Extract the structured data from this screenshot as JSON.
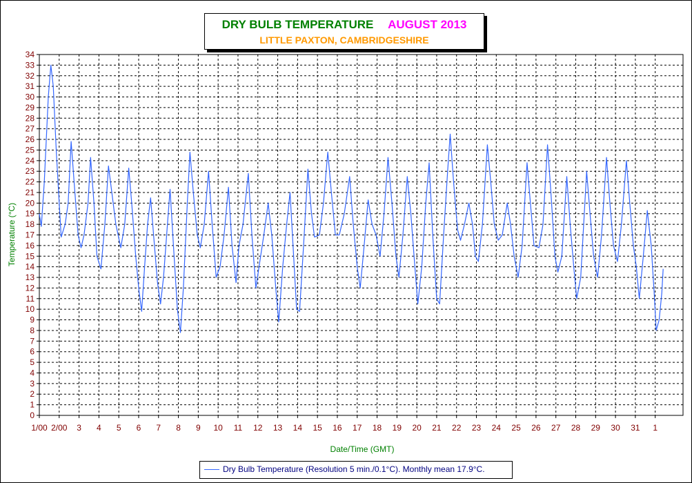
{
  "chart_data": {
    "type": "line",
    "title": "DRY BULB TEMPERATURE",
    "title_period": "AUGUST 2013",
    "subtitle": "LITTLE PAXTON, CAMBRIDGESHIRE",
    "xlabel": "Date/Time (GMT)",
    "ylabel": "Temperature (°C)",
    "ylim": [
      0,
      34
    ],
    "xlim": [
      1,
      33.4
    ],
    "x_unit": "day of August 2013 (GMT)",
    "grid": true,
    "legend_placement": "bottom-center",
    "y_ticks": [
      "0",
      "1",
      "2",
      "3",
      "4",
      "5",
      "6",
      "7",
      "8",
      "9",
      "10",
      "11",
      "12",
      "13",
      "14",
      "15",
      "16",
      "17",
      "18",
      "19",
      "20",
      "21",
      "22",
      "23",
      "24",
      "25",
      "26",
      "27",
      "28",
      "29",
      "30",
      "31",
      "32",
      "33",
      "34"
    ],
    "x_ticks": [
      {
        "day": 1,
        "label": "1/00"
      },
      {
        "day": 2,
        "label": "2/00"
      },
      {
        "day": 3,
        "label": "3"
      },
      {
        "day": 4,
        "label": "4"
      },
      {
        "day": 5,
        "label": "5"
      },
      {
        "day": 6,
        "label": "6"
      },
      {
        "day": 7,
        "label": "7"
      },
      {
        "day": 8,
        "label": "8"
      },
      {
        "day": 9,
        "label": "9"
      },
      {
        "day": 10,
        "label": "10"
      },
      {
        "day": 11,
        "label": "11"
      },
      {
        "day": 12,
        "label": "12"
      },
      {
        "day": 13,
        "label": "13"
      },
      {
        "day": 14,
        "label": "14"
      },
      {
        "day": 15,
        "label": "15"
      },
      {
        "day": 16,
        "label": "16"
      },
      {
        "day": 17,
        "label": "17"
      },
      {
        "day": 18,
        "label": "18"
      },
      {
        "day": 19,
        "label": "19"
      },
      {
        "day": 20,
        "label": "20"
      },
      {
        "day": 21,
        "label": "21"
      },
      {
        "day": 22,
        "label": "22"
      },
      {
        "day": 23,
        "label": "23"
      },
      {
        "day": 24,
        "label": "24"
      },
      {
        "day": 25,
        "label": "25"
      },
      {
        "day": 26,
        "label": "26"
      },
      {
        "day": 27,
        "label": "27"
      },
      {
        "day": 28,
        "label": "28"
      },
      {
        "day": 29,
        "label": "29"
      },
      {
        "day": 30,
        "label": "30"
      },
      {
        "day": 31,
        "label": "31"
      },
      {
        "day": 32,
        "label": "1"
      }
    ],
    "series": [
      {
        "name": "Dry Bulb Temperature (Resolution 5 min./0.1°C). Monthly mean 17.9°C.",
        "color": "#3366ff",
        "points": [
          [
            1.0,
            19.0
          ],
          [
            1.1,
            17.8
          ],
          [
            1.25,
            22.0
          ],
          [
            1.45,
            30.0
          ],
          [
            1.58,
            33.0
          ],
          [
            1.7,
            31.0
          ],
          [
            1.85,
            25.0
          ],
          [
            2.0,
            20.0
          ],
          [
            2.1,
            16.8
          ],
          [
            2.3,
            18.0
          ],
          [
            2.45,
            20.0
          ],
          [
            2.6,
            25.8
          ],
          [
            2.75,
            22.0
          ],
          [
            2.95,
            17.0
          ],
          [
            3.1,
            15.8
          ],
          [
            3.25,
            17.0
          ],
          [
            3.45,
            20.0
          ],
          [
            3.58,
            24.3
          ],
          [
            3.75,
            20.0
          ],
          [
            3.9,
            15.0
          ],
          [
            4.1,
            13.8
          ],
          [
            4.3,
            18.0
          ],
          [
            4.48,
            23.5
          ],
          [
            4.65,
            21.0
          ],
          [
            4.85,
            18.0
          ],
          [
            5.1,
            15.8
          ],
          [
            5.3,
            18.0
          ],
          [
            5.5,
            23.3
          ],
          [
            5.65,
            20.0
          ],
          [
            5.85,
            15.0
          ],
          [
            6.0,
            12.0
          ],
          [
            6.15,
            9.8
          ],
          [
            6.3,
            14.0
          ],
          [
            6.45,
            18.0
          ],
          [
            6.6,
            20.5
          ],
          [
            6.75,
            17.0
          ],
          [
            6.95,
            12.5
          ],
          [
            7.1,
            10.5
          ],
          [
            7.25,
            13.0
          ],
          [
            7.45,
            18.0
          ],
          [
            7.58,
            21.3
          ],
          [
            7.75,
            16.0
          ],
          [
            7.95,
            10.0
          ],
          [
            8.1,
            7.8
          ],
          [
            8.25,
            12.0
          ],
          [
            8.45,
            20.0
          ],
          [
            8.58,
            24.8
          ],
          [
            8.75,
            21.0
          ],
          [
            8.95,
            17.0
          ],
          [
            9.1,
            15.8
          ],
          [
            9.3,
            18.0
          ],
          [
            9.52,
            23.0
          ],
          [
            9.7,
            18.0
          ],
          [
            9.9,
            13.0
          ],
          [
            10.1,
            14.0
          ],
          [
            10.3,
            17.0
          ],
          [
            10.52,
            21.5
          ],
          [
            10.7,
            16.0
          ],
          [
            10.9,
            12.5
          ],
          [
            11.05,
            16.0
          ],
          [
            11.25,
            18.0
          ],
          [
            11.52,
            22.8
          ],
          [
            11.7,
            17.0
          ],
          [
            11.9,
            12.0
          ],
          [
            12.1,
            14.5
          ],
          [
            12.3,
            17.0
          ],
          [
            12.52,
            20.0
          ],
          [
            12.7,
            17.0
          ],
          [
            12.9,
            12.0
          ],
          [
            13.05,
            8.8
          ],
          [
            13.25,
            14.0
          ],
          [
            13.45,
            18.0
          ],
          [
            13.62,
            21.0
          ],
          [
            13.8,
            15.0
          ],
          [
            13.95,
            10.0
          ],
          [
            14.1,
            9.8
          ],
          [
            14.3,
            16.0
          ],
          [
            14.52,
            23.2
          ],
          [
            14.7,
            19.0
          ],
          [
            14.85,
            16.8
          ],
          [
            15.1,
            17.0
          ],
          [
            15.3,
            20.0
          ],
          [
            15.52,
            24.8
          ],
          [
            15.7,
            21.0
          ],
          [
            15.9,
            17.0
          ],
          [
            16.1,
            17.0
          ],
          [
            16.35,
            19.0
          ],
          [
            16.62,
            22.5
          ],
          [
            16.8,
            18.0
          ],
          [
            17.0,
            14.0
          ],
          [
            17.15,
            12.0
          ],
          [
            17.35,
            16.0
          ],
          [
            17.55,
            20.3
          ],
          [
            17.75,
            18.0
          ],
          [
            17.95,
            17.0
          ],
          [
            18.15,
            15.0
          ],
          [
            18.35,
            19.0
          ],
          [
            18.55,
            24.3
          ],
          [
            18.75,
            20.0
          ],
          [
            18.95,
            15.0
          ],
          [
            19.1,
            13.0
          ],
          [
            19.3,
            17.0
          ],
          [
            19.52,
            22.5
          ],
          [
            19.7,
            19.0
          ],
          [
            19.9,
            14.0
          ],
          [
            20.05,
            10.5
          ],
          [
            20.25,
            14.0
          ],
          [
            20.45,
            20.0
          ],
          [
            20.62,
            23.8
          ],
          [
            20.8,
            17.0
          ],
          [
            21.0,
            11.0
          ],
          [
            21.15,
            10.5
          ],
          [
            21.35,
            17.0
          ],
          [
            21.55,
            23.0
          ],
          [
            21.68,
            26.5
          ],
          [
            21.85,
            22.0
          ],
          [
            22.05,
            17.5
          ],
          [
            22.2,
            16.5
          ],
          [
            22.4,
            18.0
          ],
          [
            22.62,
            20.0
          ],
          [
            22.8,
            18.0
          ],
          [
            22.95,
            15.0
          ],
          [
            23.1,
            14.5
          ],
          [
            23.3,
            18.0
          ],
          [
            23.55,
            25.5
          ],
          [
            23.72,
            22.0
          ],
          [
            23.9,
            18.0
          ],
          [
            24.1,
            16.5
          ],
          [
            24.3,
            17.0
          ],
          [
            24.55,
            20.0
          ],
          [
            24.72,
            18.0
          ],
          [
            24.9,
            15.0
          ],
          [
            25.1,
            13.0
          ],
          [
            25.3,
            16.0
          ],
          [
            25.55,
            23.8
          ],
          [
            25.72,
            20.0
          ],
          [
            25.9,
            16.0
          ],
          [
            26.15,
            15.8
          ],
          [
            26.35,
            18.0
          ],
          [
            26.58,
            25.5
          ],
          [
            26.75,
            21.0
          ],
          [
            26.95,
            15.0
          ],
          [
            27.1,
            13.5
          ],
          [
            27.3,
            15.0
          ],
          [
            27.55,
            22.5
          ],
          [
            27.72,
            18.0
          ],
          [
            27.9,
            14.0
          ],
          [
            28.05,
            11.0
          ],
          [
            28.25,
            13.0
          ],
          [
            28.55,
            23.0
          ],
          [
            28.72,
            19.0
          ],
          [
            28.9,
            15.0
          ],
          [
            29.1,
            13.0
          ],
          [
            29.3,
            17.0
          ],
          [
            29.55,
            24.3
          ],
          [
            29.72,
            20.0
          ],
          [
            29.9,
            16.0
          ],
          [
            30.1,
            14.5
          ],
          [
            30.3,
            18.0
          ],
          [
            30.55,
            24.0
          ],
          [
            30.72,
            20.0
          ],
          [
            30.9,
            16.0
          ],
          [
            31.05,
            14.0
          ],
          [
            31.2,
            11.0
          ],
          [
            31.4,
            15.0
          ],
          [
            31.6,
            19.3
          ],
          [
            31.8,
            16.0
          ],
          [
            31.95,
            11.5
          ],
          [
            32.05,
            8.0
          ],
          [
            32.2,
            9.0
          ],
          [
            32.33,
            11.5
          ],
          [
            32.4,
            13.8
          ]
        ]
      }
    ]
  }
}
